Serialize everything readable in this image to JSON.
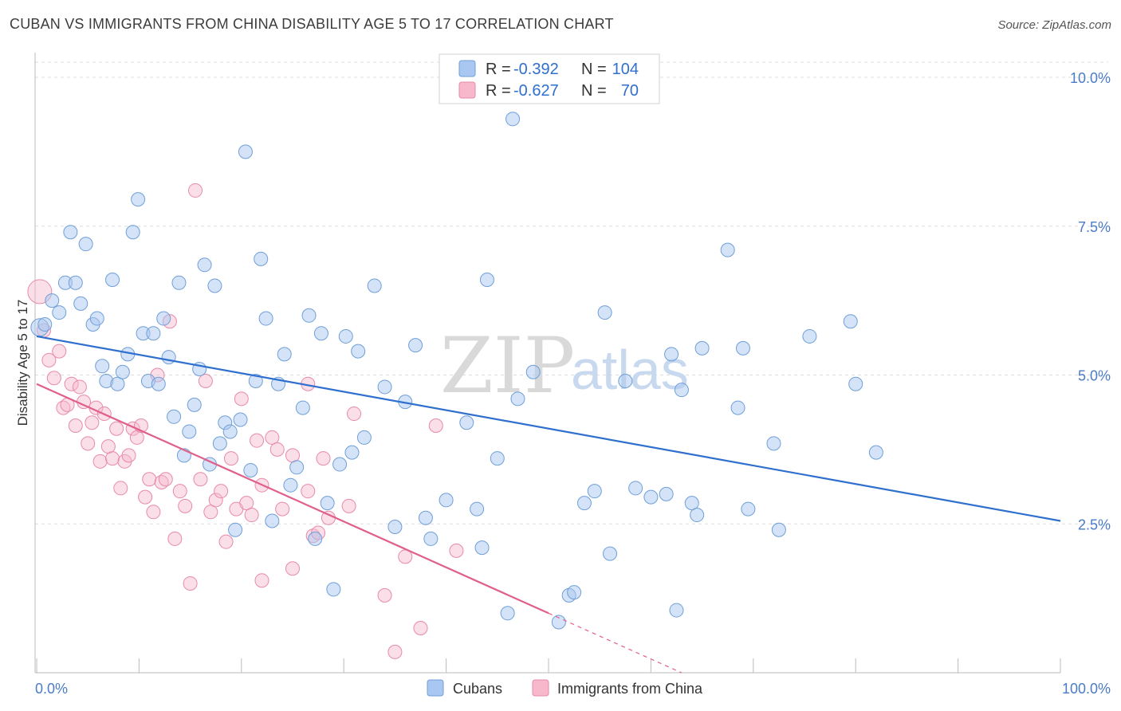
{
  "header": {
    "title": "CUBAN VS IMMIGRANTS FROM CHINA DISABILITY AGE 5 TO 17 CORRELATION CHART",
    "source": "Source: ZipAtlas.com"
  },
  "watermark": {
    "zip": "ZIP",
    "atlas": "atlas"
  },
  "legend_top": [
    {
      "r_label": "R =",
      "r_value": "-0.392",
      "n_label": "N =",
      "n_value": "104"
    },
    {
      "r_label": "R =",
      "r_value": "-0.627",
      "n_label": "N =",
      "n_value": "70"
    }
  ],
  "legend_bottom": [
    {
      "label": "Cubans"
    },
    {
      "label": "Immigrants from China"
    }
  ],
  "colors": {
    "cubans_fill": "#a9c7f0",
    "cubans_stroke": "#6f9fd8",
    "cubans_line": "#2f6fce",
    "china_fill": "#f7b8cb",
    "china_stroke": "#e88aa8",
    "china_line": "#e0608a",
    "grid": "#dddddd",
    "axis_text": "#4a7cc7"
  },
  "chart_data": {
    "type": "scatter",
    "title": "CUBAN VS IMMIGRANTS FROM CHINA DISABILITY AGE 5 TO 17 CORRELATION CHART",
    "xlabel": "",
    "ylabel": "Disability Age 5 to 17",
    "xlim": [
      0,
      100
    ],
    "ylim": [
      0,
      10
    ],
    "x_tick_labels": [
      "0.0%",
      "100.0%"
    ],
    "y_ticks": [
      2.5,
      5.0,
      7.5,
      10.0
    ],
    "y_tick_labels": [
      "2.5%",
      "5.0%",
      "7.5%",
      "10.0%"
    ],
    "grid": true,
    "series": [
      {
        "name": "Cubans",
        "regression": {
          "x": [
            0,
            100
          ],
          "y": [
            5.65,
            2.55
          ]
        },
        "points": [
          [
            0.3,
            5.8
          ],
          [
            0.8,
            5.85
          ],
          [
            1.5,
            6.25
          ],
          [
            2.2,
            6.05
          ],
          [
            2.8,
            6.55
          ],
          [
            3.3,
            7.4
          ],
          [
            3.8,
            6.55
          ],
          [
            4.3,
            6.2
          ],
          [
            4.8,
            7.2
          ],
          [
            5.5,
            5.85
          ],
          [
            5.9,
            5.95
          ],
          [
            6.4,
            5.15
          ],
          [
            6.8,
            4.9
          ],
          [
            7.4,
            6.6
          ],
          [
            7.9,
            4.85
          ],
          [
            8.4,
            5.05
          ],
          [
            8.9,
            5.35
          ],
          [
            9.4,
            7.4
          ],
          [
            9.9,
            7.95
          ],
          [
            10.4,
            5.7
          ],
          [
            10.9,
            4.9
          ],
          [
            11.4,
            5.7
          ],
          [
            11.9,
            4.85
          ],
          [
            12.4,
            5.95
          ],
          [
            12.9,
            5.3
          ],
          [
            13.4,
            4.3
          ],
          [
            13.9,
            6.55
          ],
          [
            14.4,
            3.65
          ],
          [
            14.9,
            4.05
          ],
          [
            15.4,
            4.5
          ],
          [
            15.9,
            5.1
          ],
          [
            16.4,
            6.85
          ],
          [
            16.9,
            3.5
          ],
          [
            17.4,
            6.5
          ],
          [
            17.9,
            3.85
          ],
          [
            18.4,
            4.2
          ],
          [
            18.9,
            4.05
          ],
          [
            19.4,
            2.4
          ],
          [
            19.9,
            4.25
          ],
          [
            20.4,
            8.75
          ],
          [
            20.9,
            3.4
          ],
          [
            21.4,
            4.9
          ],
          [
            21.9,
            6.95
          ],
          [
            22.4,
            5.95
          ],
          [
            23.0,
            2.55
          ],
          [
            23.6,
            4.85
          ],
          [
            24.2,
            5.35
          ],
          [
            24.8,
            3.15
          ],
          [
            25.4,
            3.45
          ],
          [
            26.0,
            4.45
          ],
          [
            26.6,
            6.0
          ],
          [
            27.2,
            2.25
          ],
          [
            27.8,
            5.7
          ],
          [
            28.4,
            2.85
          ],
          [
            29.0,
            1.4
          ],
          [
            29.6,
            3.5
          ],
          [
            30.2,
            5.65
          ],
          [
            30.8,
            3.7
          ],
          [
            31.4,
            5.4
          ],
          [
            32.0,
            3.95
          ],
          [
            33.0,
            6.5
          ],
          [
            34.0,
            4.8
          ],
          [
            35.0,
            2.45
          ],
          [
            36.0,
            4.55
          ],
          [
            37.0,
            5.5
          ],
          [
            38.0,
            2.6
          ],
          [
            38.5,
            2.25
          ],
          [
            40.0,
            2.9
          ],
          [
            42.0,
            4.2
          ],
          [
            43.0,
            2.75
          ],
          [
            43.5,
            2.1
          ],
          [
            44.0,
            6.6
          ],
          [
            45.0,
            3.6
          ],
          [
            46.0,
            1.0
          ],
          [
            46.5,
            9.3
          ],
          [
            47.0,
            4.6
          ],
          [
            48.5,
            5.05
          ],
          [
            51.0,
            0.85
          ],
          [
            52.0,
            1.3
          ],
          [
            52.5,
            1.35
          ],
          [
            53.5,
            2.85
          ],
          [
            54.5,
            3.05
          ],
          [
            55.5,
            6.05
          ],
          [
            56.0,
            2.0
          ],
          [
            57.5,
            4.9
          ],
          [
            58.5,
            3.1
          ],
          [
            61.5,
            3.0
          ],
          [
            62.0,
            5.35
          ],
          [
            62.5,
            1.05
          ],
          [
            63.0,
            4.75
          ],
          [
            64.0,
            2.85
          ],
          [
            64.5,
            2.65
          ],
          [
            65.0,
            5.45
          ],
          [
            67.5,
            7.1
          ],
          [
            68.5,
            4.45
          ],
          [
            69.0,
            5.45
          ],
          [
            69.5,
            2.75
          ],
          [
            72.0,
            3.85
          ],
          [
            72.5,
            2.4
          ],
          [
            75.5,
            5.65
          ],
          [
            79.5,
            5.9
          ],
          [
            80.0,
            4.85
          ],
          [
            82.0,
            3.7
          ],
          [
            60.0,
            2.95
          ]
        ]
      },
      {
        "name": "Immigrants from China",
        "regression": {
          "x": [
            0,
            50
          ],
          "y": [
            4.85,
            1.0
          ]
        },
        "regression_dashed": {
          "x": [
            50,
            63
          ],
          "y": [
            1.0,
            0.0
          ]
        },
        "points": [
          [
            0.3,
            6.4
          ],
          [
            0.7,
            5.75
          ],
          [
            1.2,
            5.25
          ],
          [
            1.7,
            4.95
          ],
          [
            2.2,
            5.4
          ],
          [
            2.6,
            4.45
          ],
          [
            3.0,
            4.5
          ],
          [
            3.4,
            4.85
          ],
          [
            3.8,
            4.15
          ],
          [
            4.2,
            4.8
          ],
          [
            4.6,
            4.55
          ],
          [
            5.0,
            3.85
          ],
          [
            5.4,
            4.2
          ],
          [
            5.8,
            4.45
          ],
          [
            6.2,
            3.55
          ],
          [
            6.6,
            4.35
          ],
          [
            7.0,
            3.8
          ],
          [
            7.4,
            3.6
          ],
          [
            7.8,
            4.1
          ],
          [
            8.2,
            3.1
          ],
          [
            8.6,
            3.55
          ],
          [
            9.0,
            3.65
          ],
          [
            9.4,
            4.1
          ],
          [
            9.8,
            3.95
          ],
          [
            10.2,
            4.15
          ],
          [
            10.6,
            2.95
          ],
          [
            11.0,
            3.25
          ],
          [
            11.4,
            2.7
          ],
          [
            11.8,
            5.0
          ],
          [
            12.2,
            3.2
          ],
          [
            12.6,
            3.25
          ],
          [
            13.0,
            5.9
          ],
          [
            13.5,
            2.25
          ],
          [
            14.0,
            3.05
          ],
          [
            14.5,
            2.8
          ],
          [
            15.0,
            1.5
          ],
          [
            15.5,
            8.1
          ],
          [
            16.0,
            3.25
          ],
          [
            16.5,
            4.9
          ],
          [
            17.0,
            2.7
          ],
          [
            17.5,
            2.9
          ],
          [
            18.0,
            3.05
          ],
          [
            18.5,
            2.2
          ],
          [
            19.0,
            3.6
          ],
          [
            19.5,
            2.75
          ],
          [
            20.0,
            4.6
          ],
          [
            20.5,
            2.85
          ],
          [
            21.0,
            2.65
          ],
          [
            21.5,
            3.9
          ],
          [
            22.0,
            1.55
          ],
          [
            23.0,
            3.95
          ],
          [
            23.5,
            3.75
          ],
          [
            24.0,
            2.75
          ],
          [
            25.0,
            1.75
          ],
          [
            26.5,
            3.05
          ],
          [
            27.0,
            2.3
          ],
          [
            27.5,
            2.35
          ],
          [
            28.0,
            3.6
          ],
          [
            28.5,
            2.6
          ],
          [
            30.5,
            2.8
          ],
          [
            31.0,
            4.35
          ],
          [
            34.0,
            1.3
          ],
          [
            35.0,
            0.35
          ],
          [
            36.0,
            1.95
          ],
          [
            37.5,
            0.75
          ],
          [
            39.0,
            4.15
          ],
          [
            41.0,
            2.05
          ],
          [
            26.5,
            4.85
          ],
          [
            22.0,
            3.15
          ],
          [
            25.0,
            3.65
          ]
        ]
      }
    ]
  }
}
